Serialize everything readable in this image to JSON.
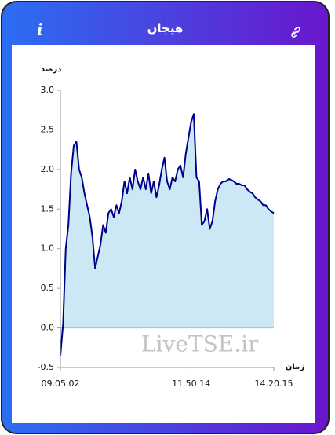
{
  "header": {
    "title": "هیجان",
    "info_icon": "i"
  },
  "chart_data": {
    "type": "area",
    "y_label": "درصد",
    "x_label": "زمان",
    "annotation": "LiveTSE.ir",
    "categories": [
      "09.05.02",
      null,
      null,
      null,
      null,
      null,
      null,
      null,
      null,
      null,
      null,
      null,
      null,
      null,
      null,
      null,
      null,
      null,
      null,
      null,
      null,
      null,
      null,
      null,
      null,
      null,
      null,
      null,
      null,
      null,
      null,
      null,
      null,
      null,
      null,
      null,
      null,
      null,
      null,
      null,
      null,
      null,
      null,
      null,
      null,
      null,
      null,
      null,
      null,
      "11.50.14",
      null,
      null,
      null,
      null,
      null,
      null,
      null,
      null,
      null,
      null,
      null,
      null,
      null,
      null,
      null,
      null,
      null,
      null,
      null,
      null,
      null,
      null,
      null,
      null,
      null,
      null,
      null,
      null,
      null,
      null,
      "14.20.15"
    ],
    "series": [
      {
        "name": null,
        "color": "#00008b",
        "fill": "#cce8f4",
        "values": [
          -0.35,
          0.05,
          1.0,
          1.3,
          1.95,
          2.3,
          2.35,
          2.0,
          1.9,
          1.7,
          1.55,
          1.4,
          1.15,
          0.75,
          0.9,
          1.05,
          1.3,
          1.2,
          1.45,
          1.5,
          1.4,
          1.55,
          1.45,
          1.6,
          1.85,
          1.7,
          1.9,
          1.75,
          2.0,
          1.85,
          1.75,
          1.9,
          1.75,
          1.95,
          1.7,
          1.85,
          1.65,
          1.8,
          2.0,
          2.15,
          1.85,
          1.75,
          1.9,
          1.85,
          2.0,
          2.05,
          1.9,
          2.2,
          2.4,
          2.6,
          2.7,
          1.9,
          1.85,
          1.3,
          1.35,
          1.5,
          1.25,
          1.35,
          1.6,
          1.75,
          1.82,
          1.85,
          1.85,
          1.88,
          1.87,
          1.85,
          1.82,
          1.82,
          1.8,
          1.8,
          1.75,
          1.72,
          1.7,
          1.65,
          1.62,
          1.6,
          1.55,
          1.55,
          1.5,
          1.47,
          1.45
        ]
      }
    ],
    "ylim": [
      -0.5,
      3
    ],
    "yticks": [
      -0.5,
      {
        "value": 0,
        "label": "0.0"
      },
      0.5,
      {
        "value": 1,
        "label": "1.0"
      },
      1.5,
      {
        "value": 2,
        "label": "2.0"
      },
      2.5,
      {
        "value": 3,
        "label": "3.0"
      }
    ]
  }
}
